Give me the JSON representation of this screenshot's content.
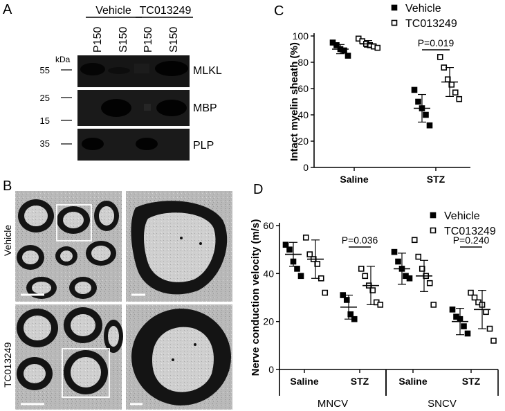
{
  "panels": {
    "A": {
      "letter": "A",
      "groups": [
        "Vehicle",
        "TC013249"
      ],
      "lanes": [
        "P150",
        "S150",
        "P150",
        "S150"
      ],
      "kda_label": "kDa",
      "blots": [
        {
          "label": "MLKL",
          "markers": [
            "55"
          ]
        },
        {
          "label": "MBP",
          "markers": [
            "25",
            "15"
          ]
        },
        {
          "label": "PLP",
          "markers": [
            "35"
          ]
        }
      ]
    },
    "B": {
      "letter": "B",
      "rows": [
        "Vehicle",
        "TC013249"
      ]
    }
  },
  "chart_data": [
    {
      "panel": "C",
      "type": "scatter",
      "ylabel": "Intact myelin sheath (%)",
      "ylim": [
        0,
        100
      ],
      "yticks": [
        0,
        20,
        40,
        60,
        80,
        100
      ],
      "categories": [
        "Saline",
        "STZ"
      ],
      "legend": {
        "placement": "top-right",
        "entries": [
          "Vehicle",
          "TC013249"
        ]
      },
      "series": [
        {
          "name": "Vehicle",
          "marker": "filled-square",
          "points": [
            [
              95,
              93,
              90,
              89,
              85
            ],
            [
              59,
              50,
              45,
              40,
              32
            ]
          ],
          "mean": [
            90,
            45
          ],
          "sd": [
            3.5,
            10.5
          ]
        },
        {
          "name": "TC013249",
          "marker": "open-square",
          "points": [
            [
              98,
              96,
              94,
              93,
              92,
              91
            ],
            [
              84,
              76,
              67,
              63,
              57,
              52
            ]
          ],
          "mean": [
            94,
            65
          ],
          "sd": [
            2.5,
            11
          ]
        }
      ],
      "annotations": [
        {
          "text": "P=0.019",
          "category": "STZ"
        }
      ]
    },
    {
      "panel": "D",
      "type": "scatter",
      "ylabel": "Nerve conduction velocity (m/s)",
      "ylim": [
        0,
        60
      ],
      "yticks": [
        0,
        20,
        40,
        60
      ],
      "categories": [
        "Saline",
        "STZ",
        "Saline",
        "STZ"
      ],
      "group_labels": [
        "MNCV",
        "SNCV"
      ],
      "legend": {
        "placement": "top-right",
        "entries": [
          "Vehicle",
          "TC013249"
        ]
      },
      "series": [
        {
          "name": "Vehicle",
          "marker": "filled-square",
          "points": [
            [
              52,
              50,
              45,
              42,
              39
            ],
            [
              31,
              29,
              23,
              21
            ],
            [
              49,
              45,
              42,
              39,
              38
            ],
            [
              25,
              22,
              21,
              18,
              15
            ]
          ],
          "mean": [
            48,
            26,
            42,
            20
          ],
          "sd": [
            5,
            5,
            6.5,
            5.5
          ]
        },
        {
          "name": "TC013249",
          "marker": "open-square",
          "points": [
            [
              55,
              48,
              46,
              44,
              38,
              32
            ],
            [
              42,
              39,
              35,
              33,
              28,
              27
            ],
            [
              54,
              47,
              42,
              39,
              36,
              27
            ],
            [
              32,
              30,
              28,
              27,
              24,
              17,
              12
            ]
          ],
          "mean": [
            46,
            35,
            39,
            25
          ],
          "sd": [
            8,
            8,
            6.5,
            8
          ]
        }
      ],
      "annotations": [
        {
          "text": "P=0.036",
          "category_index": 1
        },
        {
          "text": "P=0.240",
          "category_index": 3
        }
      ]
    }
  ]
}
